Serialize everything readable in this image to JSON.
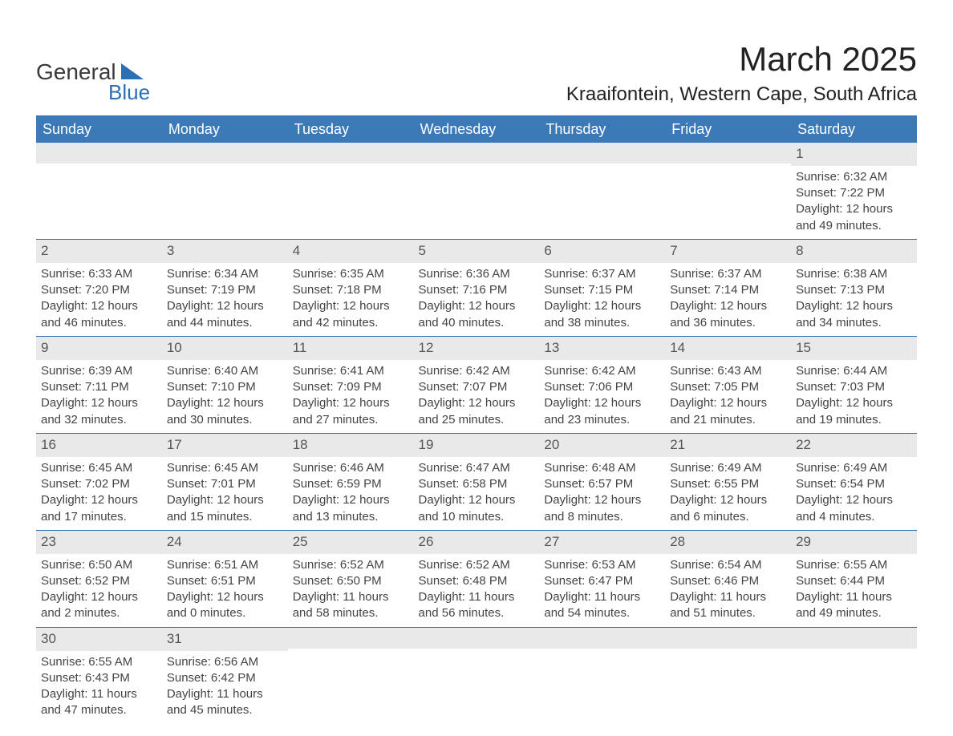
{
  "logo": {
    "text1": "General",
    "text2": "Blue"
  },
  "title": "March 2025",
  "location": "Kraaifontein, Western Cape, South Africa",
  "colors": {
    "header_bg": "#3b79b7",
    "header_text": "#ffffff",
    "daynum_bg": "#e9e9e9",
    "border": "#2d6fb5",
    "logo_shape": "#2d6fb5",
    "body_text": "#444444"
  },
  "daysOfWeek": [
    "Sunday",
    "Monday",
    "Tuesday",
    "Wednesday",
    "Thursday",
    "Friday",
    "Saturday"
  ],
  "weeks": [
    [
      null,
      null,
      null,
      null,
      null,
      null,
      {
        "n": "1",
        "sr": "6:32 AM",
        "ss": "7:22 PM",
        "dl": "12 hours and 49 minutes."
      }
    ],
    [
      {
        "n": "2",
        "sr": "6:33 AM",
        "ss": "7:20 PM",
        "dl": "12 hours and 46 minutes."
      },
      {
        "n": "3",
        "sr": "6:34 AM",
        "ss": "7:19 PM",
        "dl": "12 hours and 44 minutes."
      },
      {
        "n": "4",
        "sr": "6:35 AM",
        "ss": "7:18 PM",
        "dl": "12 hours and 42 minutes."
      },
      {
        "n": "5",
        "sr": "6:36 AM",
        "ss": "7:16 PM",
        "dl": "12 hours and 40 minutes."
      },
      {
        "n": "6",
        "sr": "6:37 AM",
        "ss": "7:15 PM",
        "dl": "12 hours and 38 minutes."
      },
      {
        "n": "7",
        "sr": "6:37 AM",
        "ss": "7:14 PM",
        "dl": "12 hours and 36 minutes."
      },
      {
        "n": "8",
        "sr": "6:38 AM",
        "ss": "7:13 PM",
        "dl": "12 hours and 34 minutes."
      }
    ],
    [
      {
        "n": "9",
        "sr": "6:39 AM",
        "ss": "7:11 PM",
        "dl": "12 hours and 32 minutes."
      },
      {
        "n": "10",
        "sr": "6:40 AM",
        "ss": "7:10 PM",
        "dl": "12 hours and 30 minutes."
      },
      {
        "n": "11",
        "sr": "6:41 AM",
        "ss": "7:09 PM",
        "dl": "12 hours and 27 minutes."
      },
      {
        "n": "12",
        "sr": "6:42 AM",
        "ss": "7:07 PM",
        "dl": "12 hours and 25 minutes."
      },
      {
        "n": "13",
        "sr": "6:42 AM",
        "ss": "7:06 PM",
        "dl": "12 hours and 23 minutes."
      },
      {
        "n": "14",
        "sr": "6:43 AM",
        "ss": "7:05 PM",
        "dl": "12 hours and 21 minutes."
      },
      {
        "n": "15",
        "sr": "6:44 AM",
        "ss": "7:03 PM",
        "dl": "12 hours and 19 minutes."
      }
    ],
    [
      {
        "n": "16",
        "sr": "6:45 AM",
        "ss": "7:02 PM",
        "dl": "12 hours and 17 minutes."
      },
      {
        "n": "17",
        "sr": "6:45 AM",
        "ss": "7:01 PM",
        "dl": "12 hours and 15 minutes."
      },
      {
        "n": "18",
        "sr": "6:46 AM",
        "ss": "6:59 PM",
        "dl": "12 hours and 13 minutes."
      },
      {
        "n": "19",
        "sr": "6:47 AM",
        "ss": "6:58 PM",
        "dl": "12 hours and 10 minutes."
      },
      {
        "n": "20",
        "sr": "6:48 AM",
        "ss": "6:57 PM",
        "dl": "12 hours and 8 minutes."
      },
      {
        "n": "21",
        "sr": "6:49 AM",
        "ss": "6:55 PM",
        "dl": "12 hours and 6 minutes."
      },
      {
        "n": "22",
        "sr": "6:49 AM",
        "ss": "6:54 PM",
        "dl": "12 hours and 4 minutes."
      }
    ],
    [
      {
        "n": "23",
        "sr": "6:50 AM",
        "ss": "6:52 PM",
        "dl": "12 hours and 2 minutes."
      },
      {
        "n": "24",
        "sr": "6:51 AM",
        "ss": "6:51 PM",
        "dl": "12 hours and 0 minutes."
      },
      {
        "n": "25",
        "sr": "6:52 AM",
        "ss": "6:50 PM",
        "dl": "11 hours and 58 minutes."
      },
      {
        "n": "26",
        "sr": "6:52 AM",
        "ss": "6:48 PM",
        "dl": "11 hours and 56 minutes."
      },
      {
        "n": "27",
        "sr": "6:53 AM",
        "ss": "6:47 PM",
        "dl": "11 hours and 54 minutes."
      },
      {
        "n": "28",
        "sr": "6:54 AM",
        "ss": "6:46 PM",
        "dl": "11 hours and 51 minutes."
      },
      {
        "n": "29",
        "sr": "6:55 AM",
        "ss": "6:44 PM",
        "dl": "11 hours and 49 minutes."
      }
    ],
    [
      {
        "n": "30",
        "sr": "6:55 AM",
        "ss": "6:43 PM",
        "dl": "11 hours and 47 minutes."
      },
      {
        "n": "31",
        "sr": "6:56 AM",
        "ss": "6:42 PM",
        "dl": "11 hours and 45 minutes."
      },
      null,
      null,
      null,
      null,
      null
    ]
  ],
  "labels": {
    "sunrise": "Sunrise: ",
    "sunset": "Sunset: ",
    "daylight": "Daylight: "
  }
}
